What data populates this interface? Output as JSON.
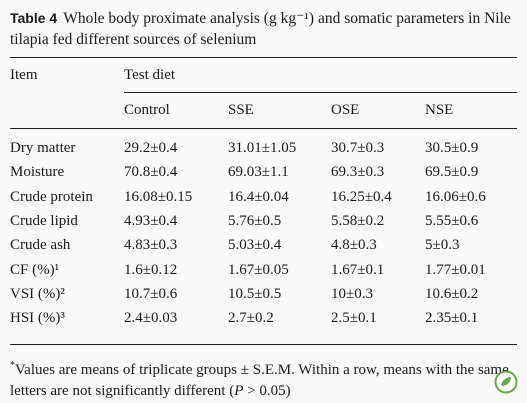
{
  "caption": {
    "label": "Table 4",
    "text": "Whole body proximate analysis (g kg⁻¹) and somatic parameters in Nile tilapia fed different sources of selenium"
  },
  "table": {
    "item_header": "Item",
    "group_header": "Test diet",
    "columns": [
      "Control",
      "SSE",
      "OSE",
      "NSE"
    ],
    "rows": [
      [
        "Dry matter",
        "29.2±0.4",
        "31.01±1.05",
        "30.7±0.3",
        "30.5±0.9"
      ],
      [
        "Moisture",
        "70.8±0.4",
        "69.03±1.1",
        "69.3±0.3",
        "69.5±0.9"
      ],
      [
        "Crude protein",
        "16.08±0.15",
        "16.4±0.04",
        "16.25±0.4",
        "16.06±0.6"
      ],
      [
        "Crude lipid",
        "4.93±0.4",
        "5.76±0.5",
        "5.58±0.2",
        "5.55±0.6"
      ],
      [
        "Crude ash",
        "4.83±0.3",
        "5.03±0.4",
        "4.8±0.3",
        "5±0.3"
      ],
      [
        "CF (%)¹",
        "1.6±0.12",
        "1.67±0.05",
        "1.67±0.1",
        "1.77±0.01"
      ],
      [
        "VSI (%)²",
        "10.7±0.6",
        "10.5±0.5",
        "10±0.3",
        "10.6±0.2"
      ],
      [
        "HSI (%)³",
        "2.4±0.03",
        "2.7±0.2",
        "2.5±0.1",
        "2.35±0.1"
      ]
    ]
  },
  "footnote": {
    "mark": "*",
    "text": "Values are means of triplicate groups ± S.E.M. Within a row, means with the same letters are not significantly different (",
    "italic": "P",
    "end": " > 0.05)"
  }
}
